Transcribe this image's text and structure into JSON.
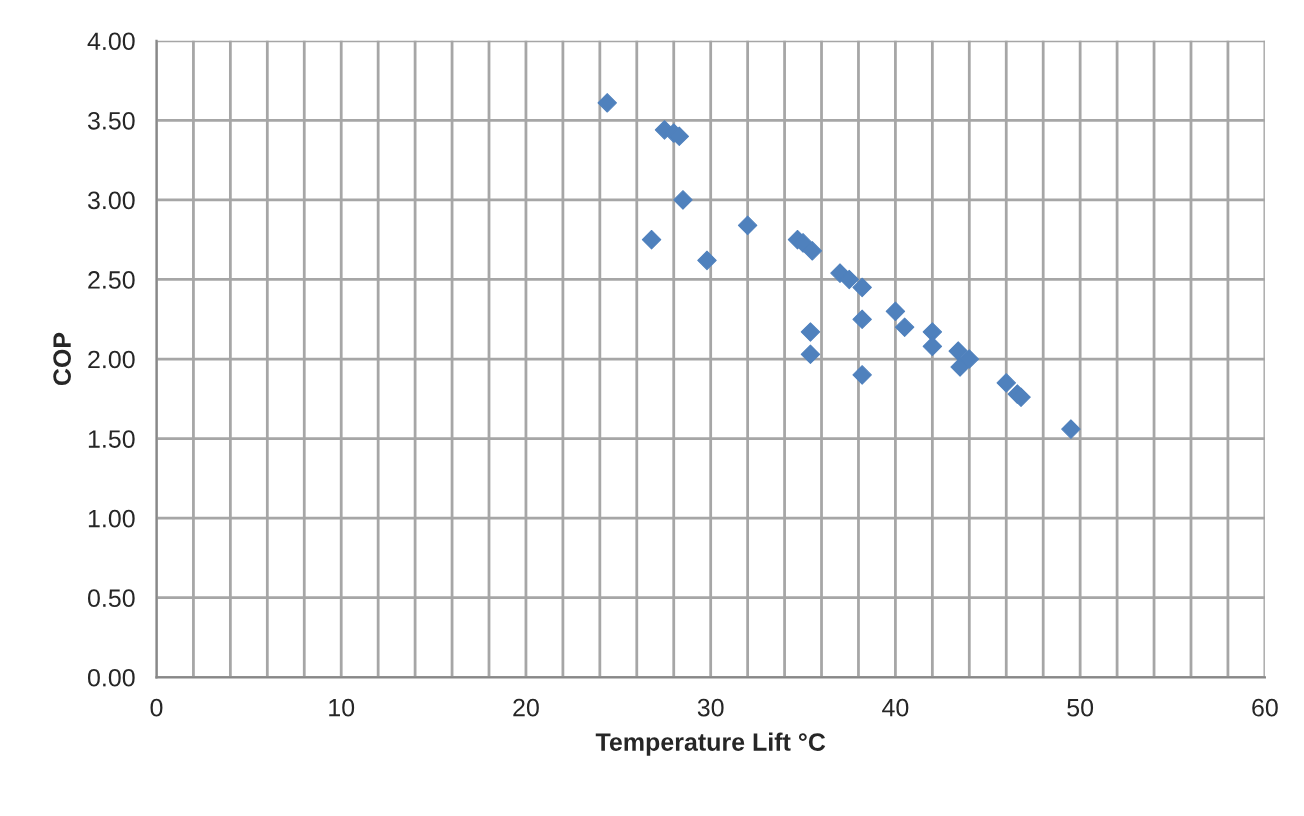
{
  "chart_data": {
    "type": "scatter",
    "xlabel": "Temperature Lift °C",
    "ylabel": "COP",
    "x": [
      24.4,
      27.5,
      28,
      28.3,
      26.8,
      28.5,
      29.8,
      32,
      34.7,
      35,
      35.5,
      37,
      37.5,
      38.2,
      40,
      40.5,
      35.4,
      35.4,
      38.2,
      38.2,
      42,
      42,
      43.4,
      43.5,
      44,
      46,
      46.6,
      46.8,
      49.5
    ],
    "series": [
      {
        "color": "#4f81bd",
        "values": [
          3.61,
          3.44,
          3.42,
          3.4,
          2.75,
          3.0,
          2.62,
          2.84,
          2.75,
          2.73,
          2.68,
          2.54,
          2.5,
          2.45,
          2.3,
          2.2,
          2.17,
          2.03,
          2.25,
          1.9,
          2.17,
          2.08,
          2.05,
          1.95,
          2.0,
          1.85,
          1.78,
          1.76,
          1.56
        ]
      }
    ],
    "marker": "diamond",
    "grid": true,
    "xlim": [
      0,
      60
    ],
    "xticks": [
      0,
      {
        "value": 2,
        "label": null
      },
      {
        "value": 4,
        "label": null
      },
      {
        "value": 6,
        "label": null
      },
      {
        "value": 8,
        "label": null
      },
      10,
      {
        "value": 12,
        "label": null
      },
      {
        "value": 14,
        "label": null
      },
      {
        "value": 16,
        "label": null
      },
      {
        "value": 18,
        "label": null
      },
      20,
      {
        "value": 22,
        "label": null
      },
      {
        "value": 24,
        "label": null
      },
      {
        "value": 26,
        "label": null
      },
      {
        "value": 28,
        "label": null
      },
      30,
      {
        "value": 32,
        "label": null
      },
      {
        "value": 34,
        "label": null
      },
      {
        "value": 36,
        "label": null
      },
      {
        "value": 38,
        "label": null
      },
      40,
      {
        "value": 42,
        "label": null
      },
      {
        "value": 44,
        "label": null
      },
      {
        "value": 46,
        "label": null
      },
      {
        "value": 48,
        "label": null
      },
      50,
      {
        "value": 52,
        "label": null
      },
      {
        "value": 54,
        "label": null
      },
      {
        "value": 56,
        "label": null
      },
      {
        "value": 58,
        "label": null
      },
      60
    ],
    "ylim": [
      0,
      4
    ],
    "yticks": [
      {
        "value": 0,
        "label": "0.00"
      },
      {
        "value": 0.5,
        "label": "0.50"
      },
      {
        "value": 1,
        "label": "1.00"
      },
      {
        "value": 1.5,
        "label": "1.50"
      },
      {
        "value": 2,
        "label": "2.00"
      },
      {
        "value": 2.5,
        "label": "2.50"
      },
      {
        "value": 3,
        "label": "3.00"
      },
      {
        "value": 3.5,
        "label": "3.50"
      },
      {
        "value": 4,
        "label": "4.00"
      }
    ]
  }
}
